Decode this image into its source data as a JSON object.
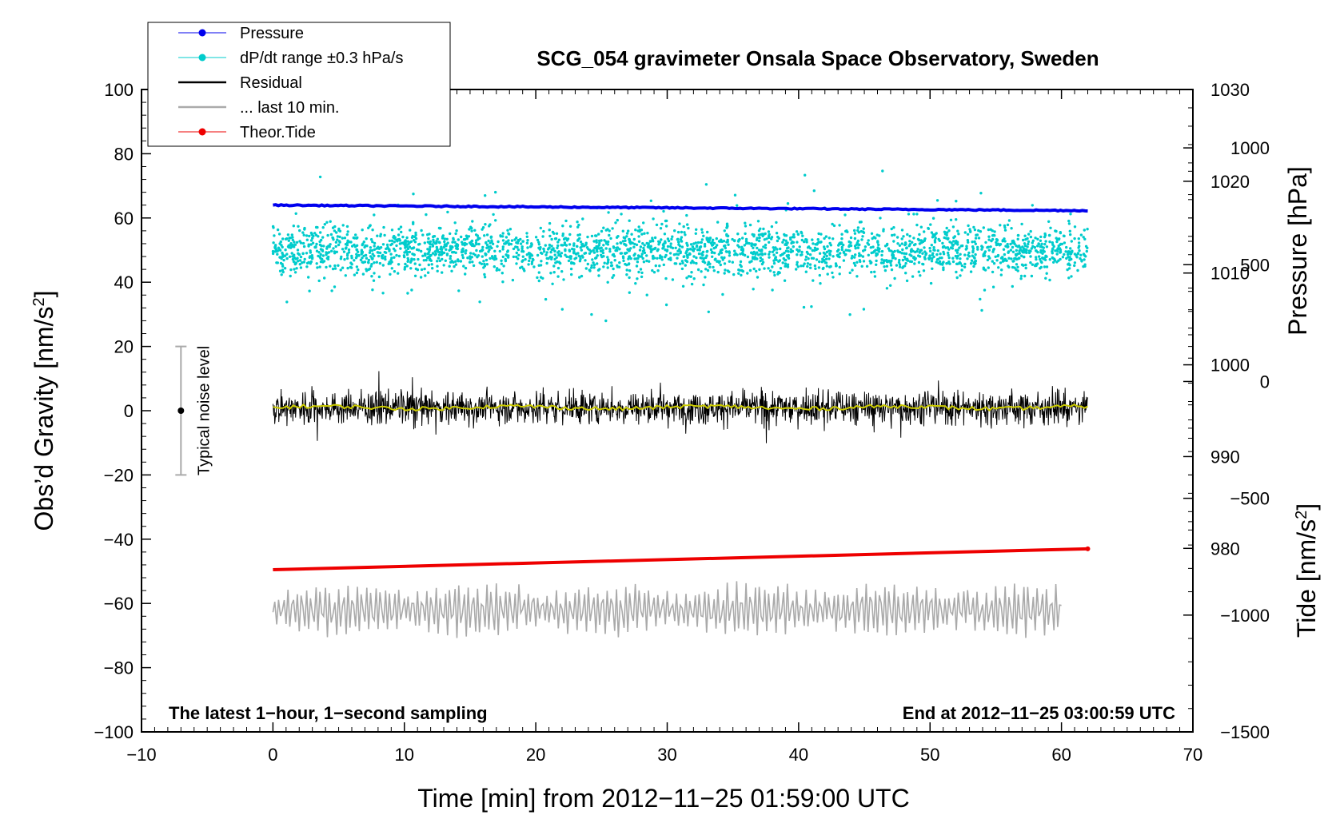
{
  "chart_data": {
    "type": "line",
    "title": "SCG_054 gravimeter Onsala Space Observatory, Sweden",
    "xlabel": "Time [min] from 2012−11−25 01:59:00 UTC",
    "ylabel_left": "Obs’d Gravity [nm/s",
    "ylabel_left_sup": "2",
    "ylabel_left_close": "]",
    "ylabel_right_pressure": "Pressure [hPa]",
    "ylabel_right_tide": "Tide [nm/s",
    "ylabel_right_tide_sup": "2",
    "ylabel_right_tide_close": "]",
    "xlim": [
      -10,
      70
    ],
    "ylim": [
      -100,
      100
    ],
    "x_ticks": [
      -10,
      0,
      10,
      20,
      30,
      40,
      50,
      60,
      70
    ],
    "x_tick_labels": [
      "−10",
      "0",
      "10",
      "20",
      "30",
      "40",
      "50",
      "60",
      "70"
    ],
    "y_ticks": [
      -100,
      -80,
      -60,
      -40,
      -20,
      0,
      20,
      40,
      60,
      80,
      100
    ],
    "y_tick_labels": [
      "−100",
      "−80",
      "−60",
      "−40",
      "−20",
      "0",
      "20",
      "40",
      "60",
      "80",
      "100"
    ],
    "pressure_axis": {
      "ticks": [
        980,
        990,
        1000,
        1010,
        1020,
        1030
      ],
      "tick_labels": [
        "980",
        "990",
        "1000",
        "1010",
        "1020",
        "1030"
      ],
      "range": [
        960,
        1030
      ]
    },
    "tide_axis": {
      "ticks": [
        -1500,
        -1000,
        -500,
        0,
        500,
        1000
      ],
      "tick_labels": [
        "−1500",
        "−1000",
        "−500",
        "0",
        "500",
        "1000"
      ],
      "range": [
        -1500,
        1250
      ]
    },
    "series": [
      {
        "name": "Pressure",
        "color": "#0000ee",
        "x": [
          0,
          62
        ],
        "values": [
          1017.4,
          1016.8
        ],
        "axis": "pressure"
      },
      {
        "name": "dP/dt range ±0.3 hPa/s",
        "color": "#00cccc",
        "center": 50,
        "x_range": [
          0,
          62
        ]
      },
      {
        "name": "Residual",
        "color": "#000000",
        "center": 1,
        "x_range": [
          0,
          62
        ]
      },
      {
        "name": "... last 10 min.",
        "color": "#aaaaaa",
        "center": -62,
        "x_range": [
          0,
          60
        ]
      },
      {
        "name": "Theor.Tide",
        "color": "#ee0000",
        "x": [
          0,
          62
        ],
        "values": [
          -49.5,
          -43
        ],
        "axis": "gravity"
      }
    ],
    "running_mean_color": "#cccc00",
    "noise_level": {
      "label": "Typical noise level",
      "x": -7,
      "center": 0,
      "range": [
        -20,
        20
      ]
    },
    "annotations": {
      "left": "The latest 1−hour, 1−second sampling",
      "right": "End at 2012−11−25 03:00:59 UTC"
    }
  }
}
